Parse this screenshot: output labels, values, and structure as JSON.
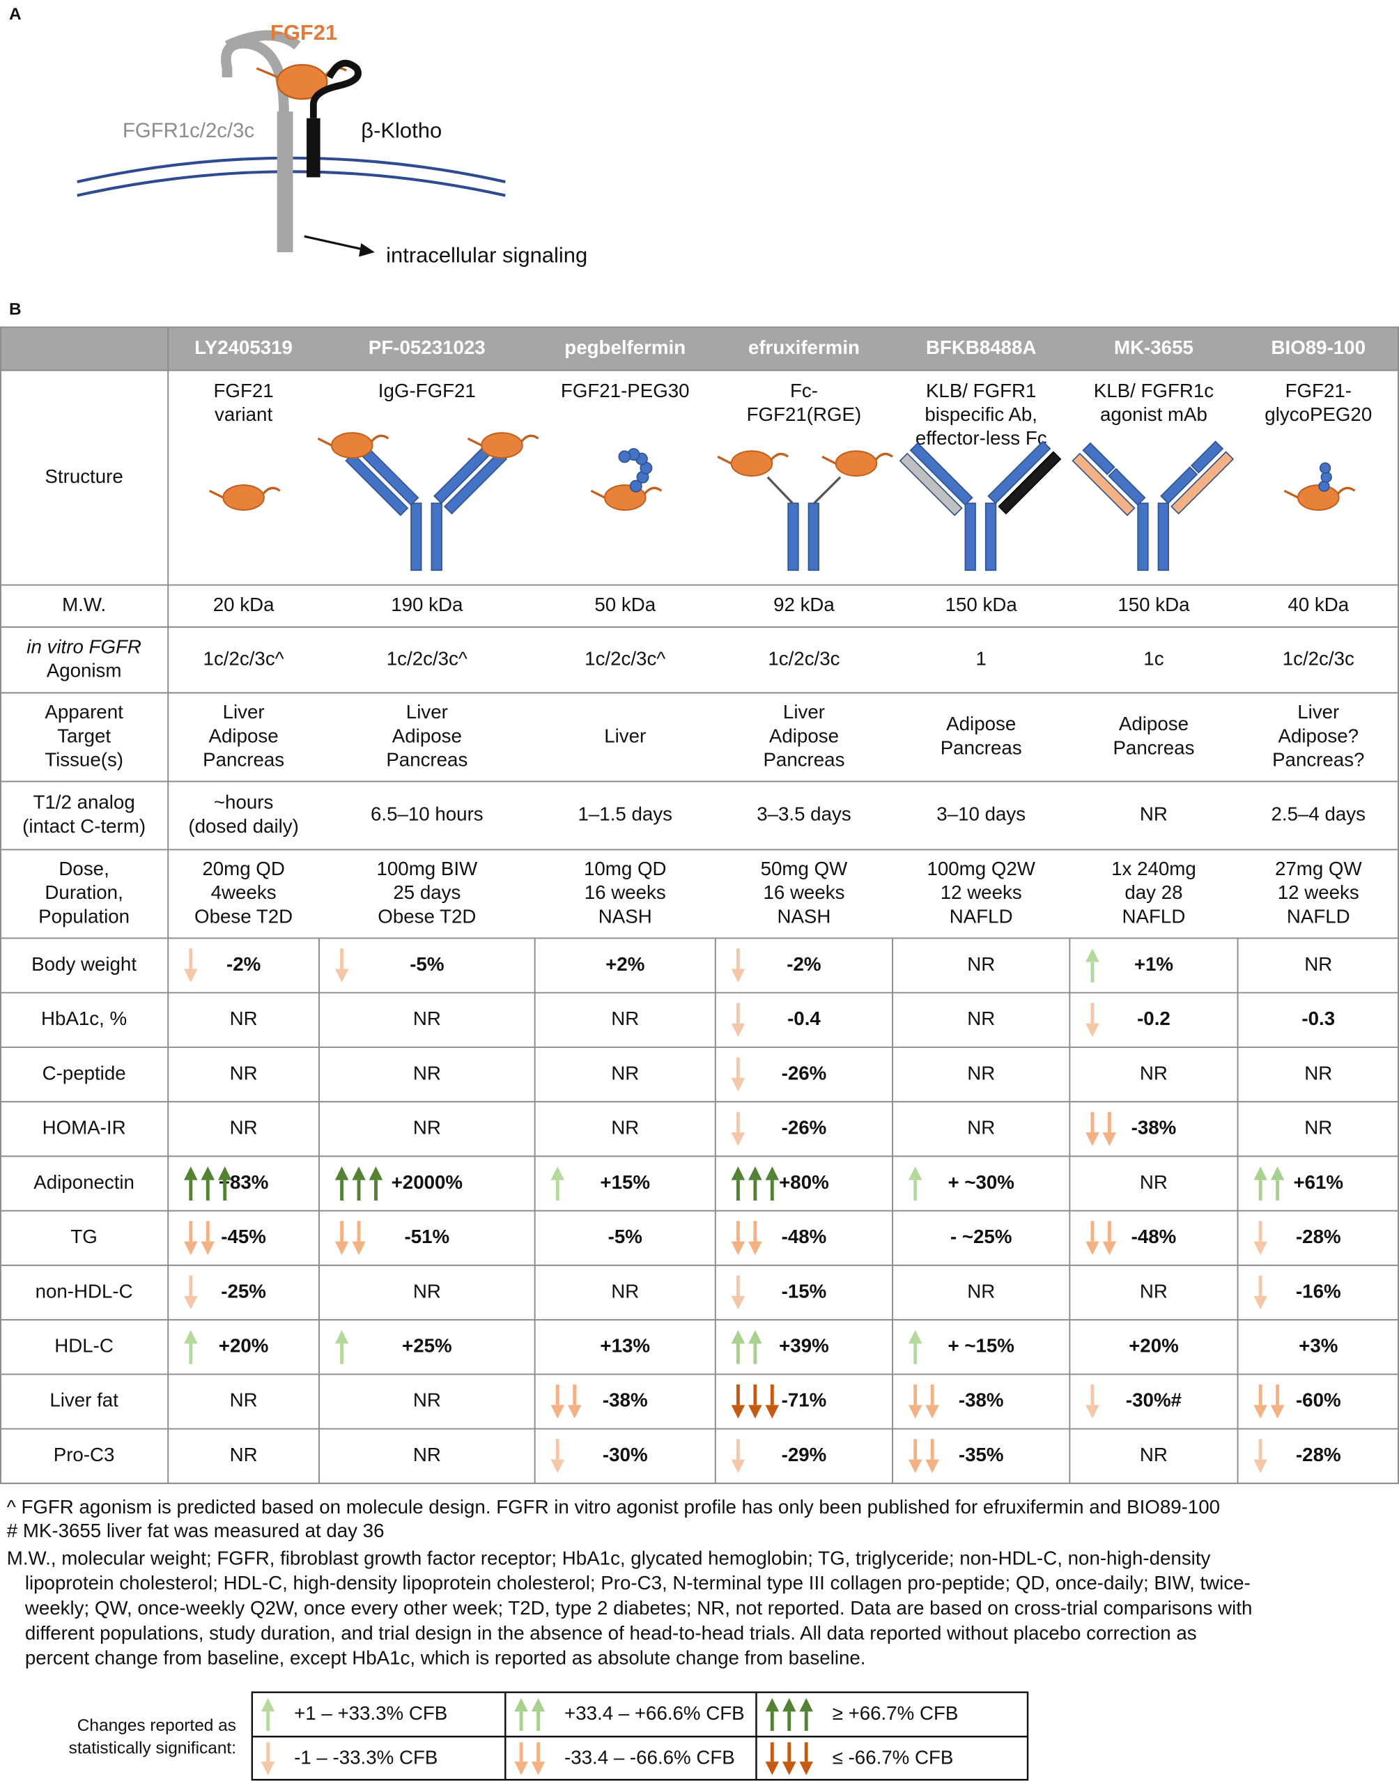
{
  "panel_a": {
    "label": "A",
    "ligand": "FGF21",
    "receptor": "FGFR1c/2c/3c",
    "coreceptor": "β-Klotho",
    "signal": "intracellular signaling"
  },
  "panel_b": {
    "label": "B",
    "columns": [
      "LY2405319",
      "PF-05231023",
      "pegbelfermin",
      "efruxifermin",
      "BFKB8488A",
      "MK-3655",
      "BIO89-100"
    ],
    "rows": [
      {
        "label": [
          "Structure"
        ],
        "cells": [
          [
            "FGF21",
            "variant"
          ],
          [
            "IgG-FGF21"
          ],
          [
            "FGF21-PEG30"
          ],
          [
            "Fc-",
            "FGF21(RGE)"
          ],
          [
            "KLB/ FGFR1",
            "bispecific Ab,",
            "effector-less Fc"
          ],
          [
            "KLB/ FGFR1c",
            "agonist mAb"
          ],
          [
            "FGF21-",
            "glycoPEG20"
          ]
        ]
      },
      {
        "label": [
          "M.W."
        ],
        "cells": [
          [
            "20 kDa"
          ],
          [
            "190 kDa"
          ],
          [
            "50 kDa"
          ],
          [
            "92 kDa"
          ],
          [
            "150 kDa"
          ],
          [
            "150 kDa"
          ],
          [
            "40 kDa"
          ]
        ]
      },
      {
        "label": [
          "in vitro FGFR",
          "Agonism"
        ],
        "cells": [
          [
            "1c/2c/3c^"
          ],
          [
            "1c/2c/3c^"
          ],
          [
            "1c/2c/3c^"
          ],
          [
            "1c/2c/3c"
          ],
          [
            "1"
          ],
          [
            "1c"
          ],
          [
            "1c/2c/3c"
          ]
        ]
      },
      {
        "label": [
          "Apparent",
          "Target",
          "Tissue(s)"
        ],
        "cells": [
          [
            "Liver",
            "Adipose",
            "Pancreas"
          ],
          [
            "Liver",
            "Adipose",
            "Pancreas"
          ],
          [
            "Liver"
          ],
          [
            "Liver",
            "Adipose",
            "Pancreas"
          ],
          [
            "Adipose",
            "Pancreas"
          ],
          [
            "Adipose",
            "Pancreas"
          ],
          [
            "Liver",
            "Adipose?",
            "Pancreas?"
          ]
        ]
      },
      {
        "label": [
          "T1/2 analog",
          "(intact C-term)"
        ],
        "cells": [
          [
            "~hours",
            "(dosed daily)"
          ],
          [
            "6.5–10 hours"
          ],
          [
            "1–1.5 days"
          ],
          [
            "3–3.5 days"
          ],
          [
            "3–10 days"
          ],
          [
            "NR"
          ],
          [
            "2.5–4 days"
          ]
        ]
      },
      {
        "label": [
          "Dose,",
          "Duration,",
          "Population"
        ],
        "cells": [
          [
            "20mg QD",
            "4weeks",
            "Obese T2D"
          ],
          [
            "100mg BIW",
            "25 days",
            "Obese T2D"
          ],
          [
            "10mg QD",
            "16 weeks",
            "NASH"
          ],
          [
            "50mg QW",
            "16 weeks",
            "NASH"
          ],
          [
            "100mg Q2W",
            "12 weeks",
            "NAFLD"
          ],
          [
            "1x 240mg",
            "day 28",
            "NAFLD"
          ],
          [
            "27mg QW",
            "12 weeks",
            "NAFLD"
          ]
        ]
      },
      {
        "label": [
          "Body weight"
        ],
        "cells": [
          [
            "-2%"
          ],
          [
            "-5%"
          ],
          [
            "+2%"
          ],
          [
            "-2%"
          ],
          [
            "NR"
          ],
          [
            "+1%"
          ],
          [
            "NR"
          ]
        ]
      },
      {
        "label": [
          "HbA1c, %"
        ],
        "cells": [
          [
            "NR"
          ],
          [
            "NR"
          ],
          [
            "NR"
          ],
          [
            "-0.4"
          ],
          [
            "NR"
          ],
          [
            "-0.2"
          ],
          [
            "-0.3"
          ]
        ]
      },
      {
        "label": [
          "C-peptide"
        ],
        "cells": [
          [
            "NR"
          ],
          [
            "NR"
          ],
          [
            "NR"
          ],
          [
            "-26%"
          ],
          [
            "NR"
          ],
          [
            "NR"
          ],
          [
            "NR"
          ]
        ]
      },
      {
        "label": [
          "HOMA-IR"
        ],
        "cells": [
          [
            "NR"
          ],
          [
            "NR"
          ],
          [
            "NR"
          ],
          [
            "-26%"
          ],
          [
            "NR"
          ],
          [
            "-38%"
          ],
          [
            "NR"
          ]
        ]
      },
      {
        "label": [
          "Adiponectin"
        ],
        "cells": [
          [
            "+83%"
          ],
          [
            "+2000%"
          ],
          [
            "+15%"
          ],
          [
            "+80%"
          ],
          [
            "+ ~30%"
          ],
          [
            "NR"
          ],
          [
            "+61%"
          ]
        ]
      },
      {
        "label": [
          "TG"
        ],
        "cells": [
          [
            "-45%"
          ],
          [
            "-51%"
          ],
          [
            "-5%"
          ],
          [
            "-48%"
          ],
          [
            "- ~25%"
          ],
          [
            "-48%"
          ],
          [
            "-28%"
          ]
        ]
      },
      {
        "label": [
          "non-HDL-C"
        ],
        "cells": [
          [
            "-25%"
          ],
          [
            "NR"
          ],
          [
            "NR"
          ],
          [
            "-15%"
          ],
          [
            "NR"
          ],
          [
            "NR"
          ],
          [
            "-16%"
          ]
        ]
      },
      {
        "label": [
          "HDL-C"
        ],
        "cells": [
          [
            "+20%"
          ],
          [
            "+25%"
          ],
          [
            "+13%"
          ],
          [
            "+39%"
          ],
          [
            "+ ~15%"
          ],
          [
            "+20%"
          ],
          [
            "+3%"
          ]
        ]
      },
      {
        "label": [
          "Liver fat"
        ],
        "cells": [
          [
            "NR"
          ],
          [
            "NR"
          ],
          [
            "-38%"
          ],
          [
            "-71%"
          ],
          [
            "-38%"
          ],
          [
            "-30%#"
          ],
          [
            "-60%"
          ]
        ]
      },
      {
        "label": [
          "Pro-C3"
        ],
        "cells": [
          [
            "NR"
          ],
          [
            "NR"
          ],
          [
            "-30%"
          ],
          [
            "-29%"
          ],
          [
            "-35%"
          ],
          [
            "NR"
          ],
          [
            "-28%"
          ]
        ]
      }
    ]
  },
  "footnotes": [
    "^ FGFR agonism is predicted based on molecule design. FGFR in vitro agonist profile has only been published for efruxifermin and BIO89-100",
    "# MK-3655 liver fat was measured at day 36",
    "M.W., molecular weight; FGFR, fibroblast growth factor receptor; HbA1c, glycated hemoglobin; TG, triglyceride; non-HDL-C, non-high-density",
    "lipoprotein cholesterol; HDL-C, high-density lipoprotein cholesterol; Pro-C3, N-terminal type III collagen pro-peptide; QD, once-daily; BIW, twice-",
    "weekly; QW, once-weekly Q2W, once every other week; T2D, type 2 diabetes; NR, not reported. Data are based on cross-trial comparisons with",
    "different populations, study duration, and trial design in the absence of head-to-head trials. All data reported without placebo correction as",
    "percent change from baseline, except HbA1c, which is reported as absolute change from baseline."
  ],
  "legend": {
    "title": [
      "Changes reported as",
      "statistically significant:"
    ],
    "entries": [
      "+1 – +33.3% CFB",
      "+33.4 – +66.6% CFB",
      "≥ +66.7% CFB",
      "-1 – -33.3% CFB",
      "-33.4 – -66.6% CFB",
      "≤ -66.7% CFB"
    ]
  }
}
